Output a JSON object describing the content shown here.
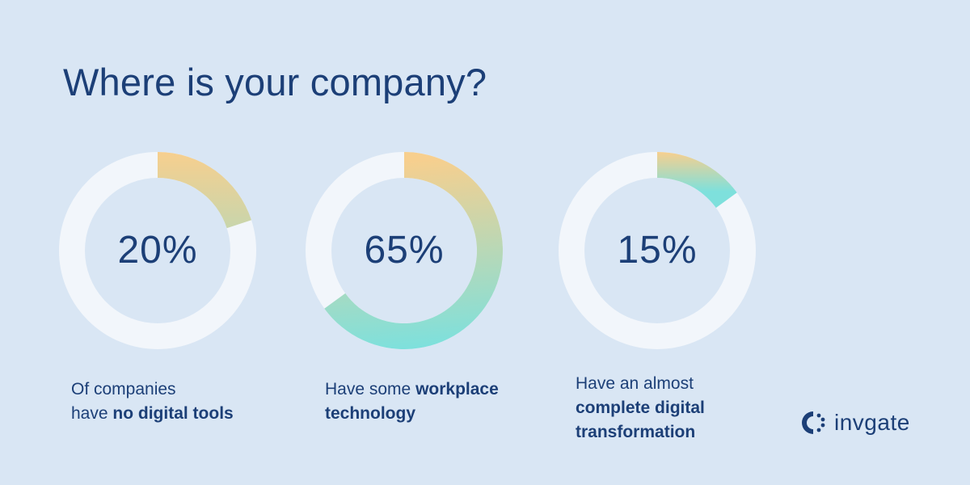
{
  "title": "Where is your company?",
  "colors": {
    "background": "#d9e6f4",
    "text": "#1c3f77",
    "track": "#f2f6fb",
    "gradient_start": "#f7cf8e",
    "gradient_end": "#7ee0dc"
  },
  "chart_data": {
    "type": "pie",
    "title": "Where is your company?",
    "series": [
      {
        "value": 20,
        "label": "20%",
        "caption_prefix": "Of companies have",
        "caption_bold": "no digital tools"
      },
      {
        "value": 65,
        "label": "65%",
        "caption_prefix": "Have some",
        "caption_bold": "workplace technology"
      },
      {
        "value": 15,
        "label": "15%",
        "caption_prefix": "Have an almost",
        "caption_bold": "complete digital transformation"
      }
    ]
  },
  "captions": {
    "c1_line1": "Of companies",
    "c1_line2_prefix": "have",
    "c1_line2_bold": "no digital tools",
    "c2_line1_prefix": "Have some",
    "c2_line1_bold": "workplace",
    "c2_line2_bold": "technology",
    "c3_line1": "Have an almost",
    "c3_line2_bold": "complete digital",
    "c3_line3_bold": "transformation"
  },
  "logo": {
    "icon": "invgate-logo-icon",
    "text": "invgate"
  }
}
